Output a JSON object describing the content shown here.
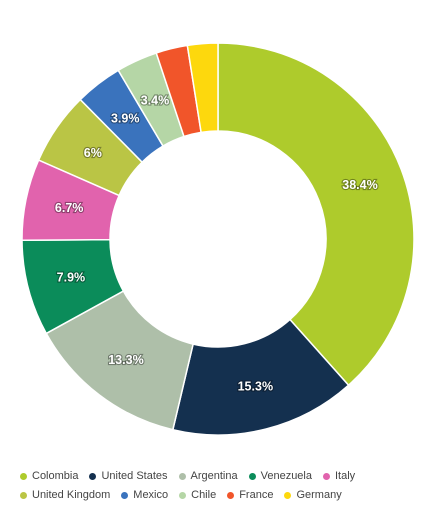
{
  "chart_data": {
    "type": "pie",
    "donut": true,
    "categories": [
      "Colombia",
      "United States",
      "Argentina",
      "Venezuela",
      "Italy",
      "United Kingdom",
      "Mexico",
      "Chile",
      "France",
      "Germany"
    ],
    "values": [
      38.4,
      15.3,
      13.3,
      7.9,
      6.7,
      6.0,
      3.9,
      3.4,
      2.6,
      2.5
    ],
    "labels": [
      "38.4%",
      "15.3%",
      "13.3%",
      "7.9%",
      "6.7%",
      "6%",
      "3.9%",
      "3.4%",
      "",
      ""
    ],
    "colors": [
      "#aecb2c",
      "#14304f",
      "#aebfa9",
      "#0b8c5a",
      "#e163ad",
      "#bac545",
      "#3a73bd",
      "#b5d6a6",
      "#f1552a",
      "#fdd80d"
    ],
    "legend_position": "bottom"
  }
}
